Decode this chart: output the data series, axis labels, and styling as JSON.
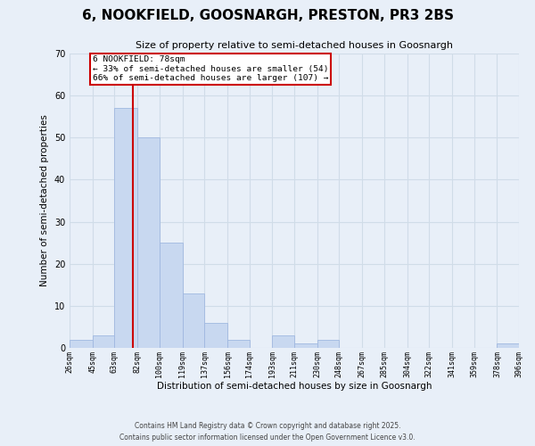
{
  "title": "6, NOOKFIELD, GOOSNARGH, PRESTON, PR3 2BS",
  "subtitle": "Size of property relative to semi-detached houses in Goosnargh",
  "xlabel": "Distribution of semi-detached houses by size in Goosnargh",
  "ylabel": "Number of semi-detached properties",
  "bin_labels": [
    "26sqm",
    "45sqm",
    "63sqm",
    "82sqm",
    "100sqm",
    "119sqm",
    "137sqm",
    "156sqm",
    "174sqm",
    "193sqm",
    "211sqm",
    "230sqm",
    "248sqm",
    "267sqm",
    "285sqm",
    "304sqm",
    "322sqm",
    "341sqm",
    "359sqm",
    "378sqm",
    "396sqm"
  ],
  "bin_edges": [
    26,
    45,
    63,
    82,
    100,
    119,
    137,
    156,
    174,
    193,
    211,
    230,
    248,
    267,
    285,
    304,
    322,
    341,
    359,
    378,
    396
  ],
  "counts": [
    2,
    3,
    57,
    50,
    25,
    13,
    6,
    2,
    0,
    3,
    1,
    2,
    0,
    0,
    0,
    0,
    0,
    0,
    0,
    1,
    0
  ],
  "bar_color": "#c8d8f0",
  "bar_edge_color": "#a0b8e0",
  "grid_color": "#d0dce8",
  "background_color": "#e8eff8",
  "property_value": 78,
  "property_label": "6 NOOKFIELD: 78sqm",
  "pct_smaller": 33,
  "count_smaller": 54,
  "pct_larger": 66,
  "count_larger": 107,
  "vline_color": "#cc0000",
  "annotation_box_color": "#ffffff",
  "annotation_border_color": "#cc0000",
  "ylim": [
    0,
    70
  ],
  "yticks": [
    0,
    10,
    20,
    30,
    40,
    50,
    60,
    70
  ],
  "footer1": "Contains HM Land Registry data © Crown copyright and database right 2025.",
  "footer2": "Contains public sector information licensed under the Open Government Licence v3.0."
}
